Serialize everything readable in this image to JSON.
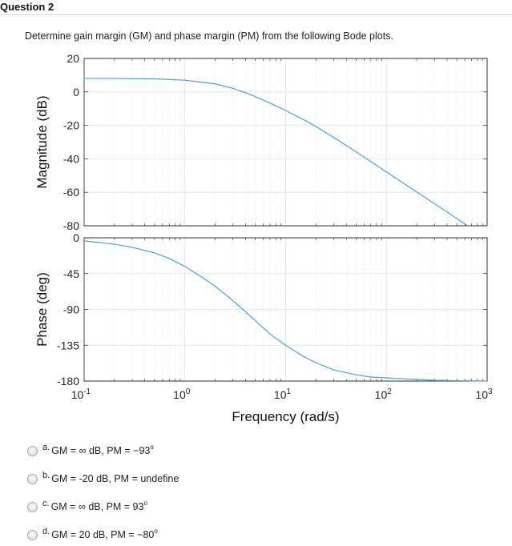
{
  "question": {
    "title": "Question 2",
    "text": "Determine gain margin (GM) and phase margin (PM) from the following Bode plots."
  },
  "chart_data": [
    {
      "type": "line",
      "panel": "magnitude",
      "ylabel": "Magnitude (dB)",
      "xscale": "log",
      "xlim": [
        0.1,
        1000
      ],
      "ylim": [
        -80,
        20
      ],
      "yticks": [
        "20",
        "0",
        "-20",
        "-40",
        "-60",
        "-80"
      ],
      "grid": true,
      "line_color": "#4a9fd8",
      "series": [
        {
          "x": [
            0.1,
            0.2,
            0.5,
            1,
            2,
            3,
            4,
            5,
            7,
            10,
            15,
            20,
            30,
            50,
            70,
            100,
            150,
            200,
            300,
            500,
            700
          ],
          "values": [
            8,
            8,
            7.8,
            7,
            4.8,
            2.1,
            -0.5,
            -2.8,
            -6.7,
            -11.1,
            -16.5,
            -20.7,
            -27.2,
            -35.8,
            -41.6,
            -47.8,
            -54.8,
            -59.8,
            -66.8,
            -75.7,
            -81.5
          ]
        }
      ]
    },
    {
      "type": "line",
      "panel": "phase",
      "ylabel": "Phase (deg)",
      "xlabel": "Frequency  (rad/s)",
      "xscale": "log",
      "xlim": [
        0.1,
        1000
      ],
      "ylim": [
        -180,
        0
      ],
      "yticks": [
        "0",
        "-45",
        "-90",
        "-135",
        "-180"
      ],
      "xticks": [
        "10^-1",
        "10^0",
        "10^1",
        "10^2",
        "10^3"
      ],
      "grid": true,
      "line_color": "#4a9fd8",
      "series": [
        {
          "x": [
            0.1,
            0.2,
            0.3,
            0.5,
            0.7,
            1,
            1.5,
            2,
            3,
            4,
            5,
            7,
            10,
            15,
            20,
            30,
            50,
            70,
            100,
            200,
            300,
            500,
            1000
          ],
          "values": [
            -4,
            -8,
            -12,
            -19,
            -26,
            -36,
            -50,
            -61,
            -79,
            -93,
            -104,
            -121,
            -135,
            -149,
            -157,
            -166,
            -172,
            -175,
            -176,
            -178,
            -179,
            -179.5,
            -180
          ]
        }
      ]
    }
  ],
  "options": [
    {
      "letter": "a.",
      "text": "GM = ∞ dB, PM = −93",
      "deg": "o"
    },
    {
      "letter": "b.",
      "text": "GM = -20 dB, PM = undefine",
      "deg": ""
    },
    {
      "letter": "c.",
      "text": "GM = ∞ dB, PM = 93",
      "deg": "o"
    },
    {
      "letter": "d.",
      "text": "GM = 20 dB, PM = −80",
      "deg": "o"
    }
  ]
}
